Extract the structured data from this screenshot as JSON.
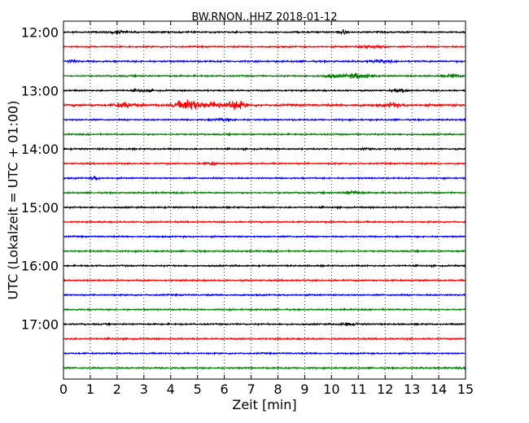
{
  "chart_data": {
    "type": "line",
    "title": "BW.RNON..HHZ 2018-01-12",
    "xlabel": "Zeit  [min]",
    "ylabel": "UTC (Lokalzeit = UTC + 01:00)",
    "xlim": [
      0,
      15
    ],
    "x_ticks": [
      "0",
      "1",
      "2",
      "3",
      "4",
      "5",
      "6",
      "7",
      "8",
      "9",
      "10",
      "11",
      "12",
      "13",
      "14",
      "15"
    ],
    "y_ticks": [
      "12:00",
      "13:00",
      "14:00",
      "15:00",
      "16:00",
      "17:00"
    ],
    "grid": "vertical dotted",
    "colors": [
      "#000000",
      "#ff0000",
      "#0000ff",
      "#008000"
    ],
    "series": [
      {
        "start": "12:00",
        "amplitude": 0.35,
        "events": [
          {
            "t": 10.4,
            "amp": 1.0,
            "dur": 0.15
          },
          {
            "t": 2.0,
            "amp": 0.6,
            "dur": 0.3
          }
        ]
      },
      {
        "start": "12:15",
        "amplitude": 0.35,
        "events": [
          {
            "t": 11.5,
            "amp": 0.7,
            "dur": 0.4
          }
        ]
      },
      {
        "start": "12:30",
        "amplitude": 0.4,
        "events": [
          {
            "t": 0.3,
            "amp": 0.6,
            "dur": 0.2
          },
          {
            "t": 11.8,
            "amp": 0.6,
            "dur": 0.3
          }
        ]
      },
      {
        "start": "12:45",
        "amplitude": 0.35,
        "events": [
          {
            "t": 11.0,
            "amp": 1.2,
            "dur": 0.5
          },
          {
            "t": 10.0,
            "amp": 0.7,
            "dur": 0.3
          },
          {
            "t": 14.5,
            "amp": 0.7,
            "dur": 0.3
          }
        ]
      },
      {
        "start": "13:00",
        "amplitude": 0.35,
        "events": [
          {
            "t": 3.0,
            "amp": 0.6,
            "dur": 0.3
          },
          {
            "t": 12.6,
            "amp": 0.6,
            "dur": 0.3
          }
        ]
      },
      {
        "start": "13:15",
        "amplitude": 0.5,
        "events": [
          {
            "t": 2.3,
            "amp": 1.3,
            "dur": 0.3
          },
          {
            "t": 4.7,
            "amp": 2.6,
            "dur": 0.5
          },
          {
            "t": 5.7,
            "amp": 1.5,
            "dur": 0.3
          },
          {
            "t": 6.4,
            "amp": 2.5,
            "dur": 0.3
          },
          {
            "t": 12.3,
            "amp": 1.0,
            "dur": 0.3
          }
        ]
      },
      {
        "start": "13:30",
        "amplitude": 0.35,
        "events": [
          {
            "t": 6.0,
            "amp": 0.6,
            "dur": 0.4
          }
        ]
      },
      {
        "start": "13:45",
        "amplitude": 0.35,
        "events": []
      },
      {
        "start": "14:00",
        "amplitude": 0.35,
        "events": [
          {
            "t": 11.4,
            "amp": 0.6,
            "dur": 0.2
          }
        ]
      },
      {
        "start": "14:15",
        "amplitude": 0.35,
        "events": [
          {
            "t": 5.5,
            "amp": 0.7,
            "dur": 0.2
          }
        ]
      },
      {
        "start": "14:30",
        "amplitude": 0.35,
        "events": [
          {
            "t": 1.15,
            "amp": 1.0,
            "dur": 0.15
          }
        ]
      },
      {
        "start": "14:45",
        "amplitude": 0.35,
        "events": [
          {
            "t": 10.8,
            "amp": 0.8,
            "dur": 0.3
          }
        ]
      },
      {
        "start": "15:00",
        "amplitude": 0.35,
        "events": []
      },
      {
        "start": "15:15",
        "amplitude": 0.35,
        "events": []
      },
      {
        "start": "15:30",
        "amplitude": 0.35,
        "events": []
      },
      {
        "start": "15:45",
        "amplitude": 0.35,
        "events": []
      },
      {
        "start": "16:00",
        "amplitude": 0.35,
        "events": []
      },
      {
        "start": "16:15",
        "amplitude": 0.35,
        "events": []
      },
      {
        "start": "16:30",
        "amplitude": 0.35,
        "events": []
      },
      {
        "start": "16:45",
        "amplitude": 0.35,
        "events": []
      },
      {
        "start": "17:00",
        "amplitude": 0.35,
        "events": [
          {
            "t": 10.6,
            "amp": 0.6,
            "dur": 0.3
          }
        ]
      },
      {
        "start": "17:15",
        "amplitude": 0.35,
        "events": []
      },
      {
        "start": "17:30",
        "amplitude": 0.35,
        "events": []
      },
      {
        "start": "17:45",
        "amplitude": 0.35,
        "events": []
      }
    ]
  }
}
